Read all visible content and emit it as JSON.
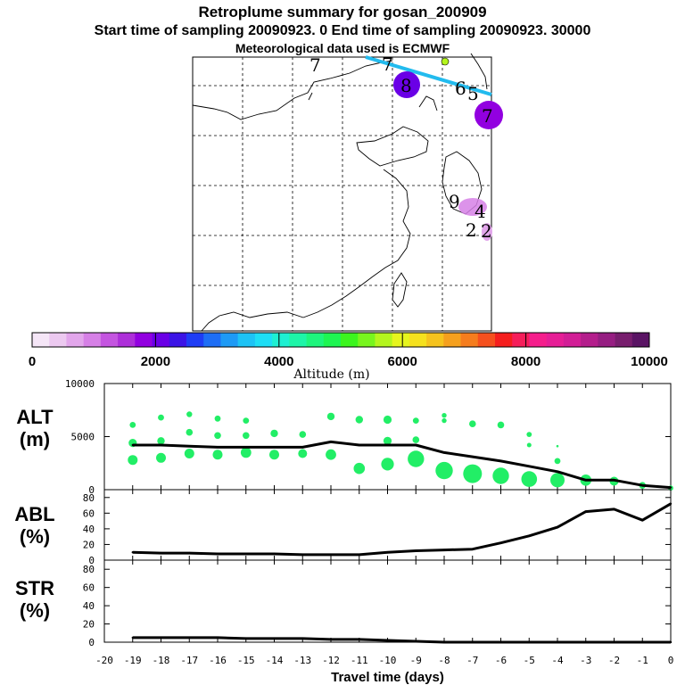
{
  "titles": {
    "line1": "Retroplume summary for gosan_200909",
    "line2": "Start time of sampling 20090923.    0     End time of sampling 20090923. 30000",
    "line3": "Meteorological data used is ECMWF"
  },
  "colors": {
    "dot": "#22ee66",
    "line": "#000000",
    "trajectory": "#22bbee"
  },
  "map": {
    "trajectory_labels": [
      {
        "text": "7"
      },
      {
        "text": "7"
      },
      {
        "text": "8"
      },
      {
        "text": "6"
      },
      {
        "text": "5"
      },
      {
        "text": "7"
      },
      {
        "text": "9"
      },
      {
        "text": "4"
      },
      {
        "text": "2"
      },
      {
        "text": "2"
      }
    ]
  },
  "colorbar": {
    "label": "Altitude (m)",
    "ticks": [
      "0",
      "2000",
      "4000",
      "6000",
      "8000",
      "10000"
    ],
    "range": [
      0,
      10000
    ],
    "colors": [
      "#f5e6f7",
      "#ecc9f0",
      "#e2a6eb",
      "#d680e6",
      "#c455e0",
      "#ad2fd9",
      "#9200e0",
      "#6a00e6",
      "#3c14e6",
      "#1f3df5",
      "#1e6ef5",
      "#1e9af5",
      "#1ec3f5",
      "#1edef5",
      "#1ef0d2",
      "#1ef5a8",
      "#1ef57d",
      "#1ef552",
      "#3cf51e",
      "#78f51e",
      "#b4f51e",
      "#e6f51e",
      "#f5e11e",
      "#f5c31e",
      "#f5a01e",
      "#f57d1e",
      "#f5501e",
      "#f51e1e",
      "#f51e5a",
      "#f51e8c",
      "#e61e96",
      "#d21e96",
      "#b41e8c",
      "#961e82",
      "#781e6e",
      "#5a1464"
    ]
  },
  "chart_data": [
    {
      "type": "line",
      "panel_label": "ALT",
      "panel_unit": "(m)",
      "x": [
        -19,
        -18,
        -17,
        -16,
        -15,
        -14,
        -13,
        -12,
        -11,
        -10,
        -9,
        -8,
        -7,
        -6,
        -5,
        -4,
        -3,
        -2,
        -1,
        0
      ],
      "line_values": [
        4200,
        4200,
        4100,
        4000,
        4000,
        4000,
        4000,
        4500,
        4200,
        4200,
        4200,
        3500,
        3100,
        2700,
        2200,
        1700,
        900,
        900,
        400,
        200
      ],
      "ylim": [
        0,
        10000
      ],
      "y_ticks": [
        "0",
        "5000",
        "10000"
      ],
      "scatter": [
        {
          "x": -19,
          "y": 6100,
          "s": 1.6
        },
        {
          "x": -19,
          "y": 4400,
          "s": 2.2
        },
        {
          "x": -19,
          "y": 2800,
          "s": 2.6
        },
        {
          "x": -18,
          "y": 6800,
          "s": 1.6
        },
        {
          "x": -18,
          "y": 4600,
          "s": 2.0
        },
        {
          "x": -18,
          "y": 3000,
          "s": 2.6
        },
        {
          "x": -17,
          "y": 7100,
          "s": 1.5
        },
        {
          "x": -17,
          "y": 5400,
          "s": 1.8
        },
        {
          "x": -17,
          "y": 3400,
          "s": 2.6
        },
        {
          "x": -16,
          "y": 6700,
          "s": 1.6
        },
        {
          "x": -16,
          "y": 5100,
          "s": 1.8
        },
        {
          "x": -16,
          "y": 3300,
          "s": 2.6
        },
        {
          "x": -15,
          "y": 6500,
          "s": 1.6
        },
        {
          "x": -15,
          "y": 5100,
          "s": 1.8
        },
        {
          "x": -15,
          "y": 3500,
          "s": 2.8
        },
        {
          "x": -14,
          "y": 5300,
          "s": 2.0
        },
        {
          "x": -14,
          "y": 3300,
          "s": 2.6
        },
        {
          "x": -13,
          "y": 5200,
          "s": 1.8
        },
        {
          "x": -13,
          "y": 3400,
          "s": 2.4
        },
        {
          "x": -12,
          "y": 6900,
          "s": 2.0
        },
        {
          "x": -12,
          "y": 3300,
          "s": 2.8
        },
        {
          "x": -11,
          "y": 6600,
          "s": 2.0
        },
        {
          "x": -11,
          "y": 2000,
          "s": 3.0
        },
        {
          "x": -10,
          "y": 6600,
          "s": 2.2
        },
        {
          "x": -10,
          "y": 4600,
          "s": 2.2
        },
        {
          "x": -10,
          "y": 2400,
          "s": 3.4
        },
        {
          "x": -9,
          "y": 6500,
          "s": 1.6
        },
        {
          "x": -9,
          "y": 4700,
          "s": 1.8
        },
        {
          "x": -9,
          "y": 2900,
          "s": 4.4
        },
        {
          "x": -8,
          "y": 7000,
          "s": 1.3
        },
        {
          "x": -8,
          "y": 6500,
          "s": 1.3
        },
        {
          "x": -8,
          "y": 1800,
          "s": 4.6
        },
        {
          "x": -7,
          "y": 6200,
          "s": 1.8
        },
        {
          "x": -7,
          "y": 1500,
          "s": 5.0
        },
        {
          "x": -6,
          "y": 6100,
          "s": 1.8
        },
        {
          "x": -6,
          "y": 1300,
          "s": 4.4
        },
        {
          "x": -5,
          "y": 5200,
          "s": 1.4
        },
        {
          "x": -5,
          "y": 4200,
          "s": 1.2
        },
        {
          "x": -5,
          "y": 1000,
          "s": 4.2
        },
        {
          "x": -4,
          "y": 4100,
          "s": 0.6
        },
        {
          "x": -4,
          "y": 2700,
          "s": 1.6
        },
        {
          "x": -4,
          "y": 900,
          "s": 3.8
        },
        {
          "x": -3,
          "y": 900,
          "s": 3.0
        },
        {
          "x": -2,
          "y": 800,
          "s": 2.4
        },
        {
          "x": -1,
          "y": 400,
          "s": 1.8
        },
        {
          "x": 0,
          "y": 150,
          "s": 1.4
        }
      ]
    },
    {
      "type": "line",
      "panel_label": "ABL",
      "panel_unit": "(%)",
      "x": [
        -19,
        -18,
        -17,
        -16,
        -15,
        -14,
        -13,
        -12,
        -11,
        -10,
        -9,
        -8,
        -7,
        -6,
        -5,
        -4,
        -3,
        -2,
        -1,
        0
      ],
      "values": [
        10,
        9,
        9,
        8,
        8,
        8,
        7,
        7,
        7,
        10,
        12,
        13,
        14,
        22,
        31,
        42,
        62,
        65,
        51,
        72
      ],
      "ylim": [
        0,
        90
      ],
      "y_ticks": [
        "0",
        "20",
        "40",
        "60",
        "80"
      ]
    },
    {
      "type": "line",
      "panel_label": "STR",
      "panel_unit": "(%)",
      "x": [
        -19,
        -18,
        -17,
        -16,
        -15,
        -14,
        -13,
        -12,
        -11,
        -10,
        -9,
        -8,
        -7,
        -6,
        -5,
        -4,
        -3,
        -2,
        -1,
        0
      ],
      "values": [
        5,
        5,
        5,
        5,
        4,
        4,
        4,
        3,
        3,
        2,
        1,
        0,
        0,
        0,
        0,
        0,
        0,
        0,
        0,
        0
      ],
      "ylim": [
        0,
        90
      ],
      "y_ticks": [
        "0",
        "20",
        "40",
        "60",
        "80"
      ]
    }
  ],
  "x_axis": {
    "label": "Travel time (days)",
    "ticks": [
      "-20",
      "-19",
      "-18",
      "-17",
      "-16",
      "-15",
      "-14",
      "-13",
      "-12",
      "-11",
      "-10",
      "-9",
      "-8",
      "-7",
      "-6",
      "-5",
      "-4",
      "-3",
      "-2",
      "-1",
      "0"
    ],
    "xlim": [
      -20,
      0
    ]
  }
}
